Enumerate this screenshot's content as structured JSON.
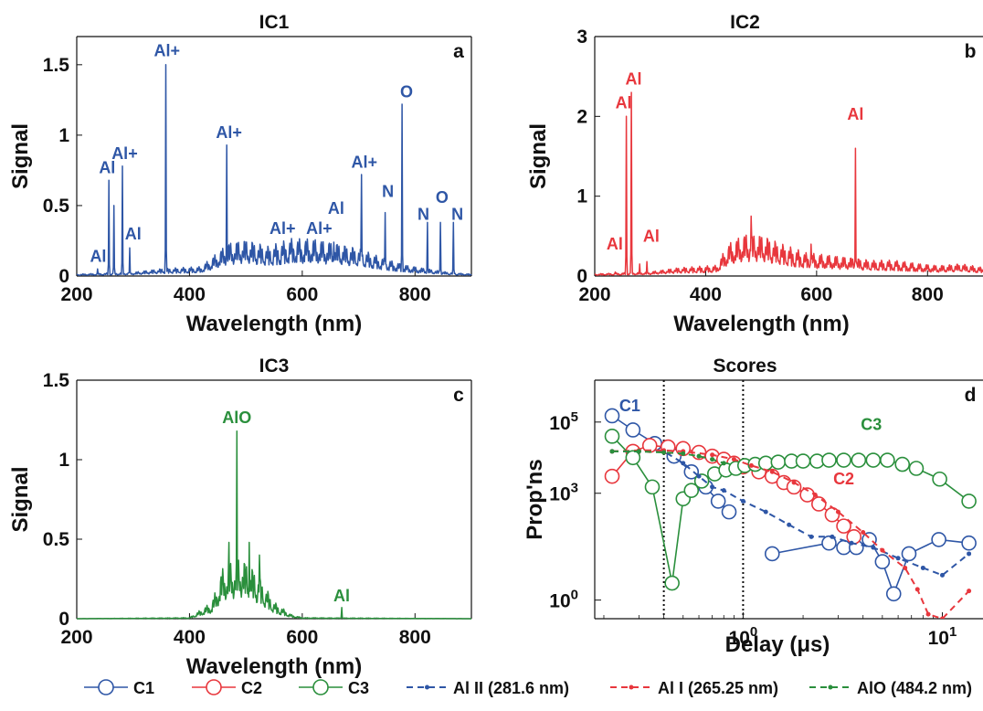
{
  "chart_data": [
    {
      "id": "a",
      "type": "line",
      "title": "IC1",
      "panel_label": "a",
      "xlabel": "Wavelength (nm)",
      "ylabel": "Signal",
      "xlim": [
        200,
        900
      ],
      "ylim": [
        0,
        1.7
      ],
      "xticks": [
        200,
        400,
        600,
        800
      ],
      "yticks": [
        0,
        0.5,
        1,
        1.5
      ],
      "ytick_labels": [
        "0",
        "0.5",
        "1",
        "1.5"
      ],
      "color": "#2e56a6",
      "baseline": [
        [
          200,
          0.01
        ],
        [
          300,
          0.02
        ],
        [
          350,
          0.04
        ],
        [
          420,
          0.05
        ],
        [
          440,
          0.1
        ],
        [
          470,
          0.18
        ],
        [
          500,
          0.2
        ],
        [
          540,
          0.16
        ],
        [
          580,
          0.2
        ],
        [
          620,
          0.2
        ],
        [
          660,
          0.18
        ],
        [
          700,
          0.15
        ],
        [
          740,
          0.1
        ],
        [
          780,
          0.06
        ],
        [
          820,
          0.04
        ],
        [
          860,
          0.02
        ],
        [
          900,
          0.01
        ]
      ],
      "peaks": [
        [
          237,
          0.05
        ],
        [
          257,
          0.68
        ],
        [
          266,
          0.5
        ],
        [
          281,
          0.78
        ],
        [
          294,
          0.2
        ],
        [
          358,
          1.5
        ],
        [
          466,
          0.93
        ],
        [
          558,
          0.12
        ],
        [
          624,
          0.15
        ],
        [
          656,
          0.24
        ],
        [
          705,
          0.72
        ],
        [
          747,
          0.45
        ],
        [
          777,
          1.22
        ],
        [
          822,
          0.38
        ],
        [
          845,
          0.38
        ],
        [
          868,
          0.38
        ]
      ],
      "annotations": [
        {
          "text": "Al",
          "x": 238,
          "y": 0.1
        },
        {
          "text": "Al",
          "x": 254,
          "y": 0.73
        },
        {
          "text": "Al+",
          "x": 285,
          "y": 0.83
        },
        {
          "text": "Al",
          "x": 300,
          "y": 0.26
        },
        {
          "text": "Al+",
          "x": 360,
          "y": 1.56
        },
        {
          "text": "Al+",
          "x": 470,
          "y": 0.98
        },
        {
          "text": "Al+",
          "x": 565,
          "y": 0.3
        },
        {
          "text": "Al+",
          "x": 630,
          "y": 0.3
        },
        {
          "text": "Al",
          "x": 660,
          "y": 0.44
        },
        {
          "text": "Al+",
          "x": 710,
          "y": 0.77
        },
        {
          "text": "N",
          "x": 752,
          "y": 0.56
        },
        {
          "text": "O",
          "x": 785,
          "y": 1.27
        },
        {
          "text": "N",
          "x": 815,
          "y": 0.4
        },
        {
          "text": "O",
          "x": 848,
          "y": 0.52
        },
        {
          "text": "N",
          "x": 875,
          "y": 0.4
        }
      ]
    },
    {
      "id": "b",
      "type": "line",
      "title": "IC2",
      "panel_label": "b",
      "xlabel": "Wavelength (nm)",
      "ylabel": "Signal",
      "xlim": [
        200,
        900
      ],
      "ylim": [
        0,
        3
      ],
      "xticks": [
        200,
        400,
        600,
        800
      ],
      "yticks": [
        0,
        1,
        2,
        3
      ],
      "ytick_labels": [
        "0",
        "1",
        "2",
        "3"
      ],
      "color": "#e8373d",
      "baseline": [
        [
          200,
          0.02
        ],
        [
          300,
          0.04
        ],
        [
          350,
          0.08
        ],
        [
          420,
          0.1
        ],
        [
          440,
          0.3
        ],
        [
          470,
          0.4
        ],
        [
          500,
          0.4
        ],
        [
          540,
          0.3
        ],
        [
          580,
          0.22
        ],
        [
          620,
          0.2
        ],
        [
          660,
          0.18
        ],
        [
          700,
          0.15
        ],
        [
          740,
          0.15
        ],
        [
          780,
          0.12
        ],
        [
          820,
          0.1
        ],
        [
          860,
          0.12
        ],
        [
          900,
          0.08
        ]
      ],
      "peaks": [
        [
          237,
          0.05
        ],
        [
          257,
          2.0
        ],
        [
          266,
          2.3
        ],
        [
          281,
          0.15
        ],
        [
          294,
          0.18
        ],
        [
          482,
          0.75
        ],
        [
          590,
          0.4
        ],
        [
          670,
          1.6
        ]
      ],
      "annotations": [
        {
          "text": "Al",
          "x": 236,
          "y": 0.33
        },
        {
          "text": "Al",
          "x": 252,
          "y": 2.1
        },
        {
          "text": "Al",
          "x": 270,
          "y": 2.4
        },
        {
          "text": "Al",
          "x": 302,
          "y": 0.43
        },
        {
          "text": "Al",
          "x": 670,
          "y": 1.96
        }
      ]
    },
    {
      "id": "c",
      "type": "line",
      "title": "IC3",
      "panel_label": "c",
      "xlabel": "Wavelength (nm)",
      "ylabel": "Signal",
      "xlim": [
        200,
        900
      ],
      "ylim": [
        0,
        1.5
      ],
      "xticks": [
        200,
        400,
        600,
        800
      ],
      "yticks": [
        0,
        0.5,
        1,
        1.5
      ],
      "ytick_labels": [
        "0",
        "0.5",
        "1",
        "1.5"
      ],
      "color": "#2a8f3c",
      "baseline": [
        [
          200,
          0.0
        ],
        [
          400,
          0.005
        ],
        [
          440,
          0.08
        ],
        [
          460,
          0.25
        ],
        [
          490,
          0.3
        ],
        [
          520,
          0.22
        ],
        [
          550,
          0.08
        ],
        [
          580,
          0.02
        ],
        [
          600,
          0.005
        ],
        [
          900,
          0.0
        ]
      ],
      "peaks": [
        [
          470,
          0.48
        ],
        [
          484,
          1.18
        ],
        [
          506,
          0.48
        ],
        [
          524,
          0.4
        ],
        [
          670,
          0.07
        ]
      ],
      "annotations": [
        {
          "text": "AlO",
          "x": 484,
          "y": 1.23
        },
        {
          "text": "Al",
          "x": 670,
          "y": 0.11
        }
      ]
    },
    {
      "id": "d",
      "type": "line",
      "title": "Scores",
      "panel_label": "d",
      "xlabel": "Delay (μs)",
      "ylabel": "Prop'ns",
      "xscale": "log",
      "yscale": "log",
      "xlim": [
        0.18,
        16
      ],
      "ylim": [
        0.3,
        1500000
      ],
      "xticks": [
        1,
        10
      ],
      "yticks": [
        1,
        1000,
        100000
      ],
      "vlines": [
        0.4,
        1.0
      ],
      "series": [
        {
          "name": "C1",
          "color": "#2e56a6",
          "style": "solid",
          "marker": "circle",
          "x": [
            0.22,
            0.28,
            0.36,
            0.45,
            0.55,
            0.65,
            0.75,
            0.85
          ],
          "y": [
            150000,
            60000,
            25000,
            11000,
            4000,
            1500,
            600,
            300
          ]
        },
        {
          "name": "C1",
          "color": "#2e56a6",
          "style": "solid",
          "marker": "circle",
          "x": [
            1.4,
            2.7,
            3.2,
            3.7,
            4.3,
            5.0,
            5.7,
            6.8,
            9.6,
            13.6
          ],
          "y": [
            20,
            40,
            30,
            30,
            50,
            12,
            1.5,
            20,
            50,
            40
          ]
        },
        {
          "name": "C2",
          "color": "#e8373d",
          "style": "solid",
          "marker": "circle",
          "x": [
            0.22,
            0.28,
            0.34,
            0.42,
            0.5,
            0.6,
            0.7,
            0.8,
            0.9,
            1.0,
            1.2,
            1.4,
            1.6,
            1.8,
            2.1,
            2.4,
            2.8,
            3.2,
            3.6
          ],
          "y": [
            3000,
            15000,
            22000,
            20000,
            18000,
            14000,
            11000,
            9000,
            7000,
            5500,
            4000,
            3000,
            2000,
            1500,
            900,
            500,
            250,
            120,
            60
          ]
        },
        {
          "name": "C3",
          "color": "#2a8f3c",
          "style": "solid",
          "marker": "circle",
          "x": [
            0.22,
            0.28,
            0.35,
            0.44,
            0.5,
            0.55,
            0.62,
            0.72,
            0.82,
            0.92,
            1.02,
            1.15,
            1.3,
            1.5,
            1.75,
            2.0,
            2.35,
            2.7,
            3.2,
            3.8,
            4.5,
            5.3,
            6.3,
            7.4,
            9.7,
            13.6
          ],
          "y": [
            40000,
            10000,
            1500,
            3,
            700,
            1200,
            2200,
            3500,
            4500,
            5000,
            6000,
            6500,
            7000,
            7500,
            8000,
            8000,
            8000,
            8500,
            8500,
            8500,
            8500,
            8500,
            6500,
            5000,
            2500,
            600
          ]
        },
        {
          "name": "Al II (281.6 nm)",
          "color": "#2e56a6",
          "style": "dashed",
          "marker": "dot",
          "x": [
            0.22,
            0.3,
            0.4,
            0.5,
            0.6,
            0.7,
            0.8,
            1.0,
            1.3,
            1.7,
            2.2,
            2.8,
            3.5,
            4.5,
            6.0,
            8.0,
            10.0,
            13.6
          ],
          "y": [
            15000,
            15000,
            15000,
            7000,
            3000,
            1500,
            1200,
            600,
            300,
            130,
            60,
            60,
            40,
            30,
            15,
            8,
            5,
            20
          ]
        },
        {
          "name": "Al I (265.25 nm)",
          "color": "#e8373d",
          "style": "dashed",
          "marker": "dot",
          "x": [
            0.22,
            0.3,
            0.4,
            0.5,
            0.7,
            0.9,
            1.1,
            1.4,
            1.8,
            2.3,
            3.0,
            4.0,
            5.0,
            6.5,
            7.5,
            8.5,
            10.0,
            13.6
          ],
          "y": [
            15000,
            16000,
            16000,
            15000,
            12000,
            9000,
            6000,
            4000,
            2000,
            900,
            300,
            80,
            25,
            8,
            2,
            0.4,
            0.3,
            1.8
          ]
        },
        {
          "name": "AlO (484.2 nm)",
          "color": "#2a8f3c",
          "style": "dashed",
          "marker": "dot",
          "x": [
            0.22,
            0.3,
            0.4,
            0.5,
            0.6,
            0.7,
            0.8
          ],
          "y": [
            15000,
            15000,
            14000,
            13000,
            11000,
            9000,
            7000
          ]
        }
      ],
      "annotations": [
        {
          "text": "C1",
          "x": 0.27,
          "y": 200000,
          "color": "#2e56a6"
        },
        {
          "text": "C2",
          "x": 3.2,
          "y": 1800,
          "color": "#e8373d"
        },
        {
          "text": "C3",
          "x": 4.4,
          "y": 60000,
          "color": "#2a8f3c"
        }
      ]
    }
  ],
  "legend": {
    "placement": "bottom",
    "entries": [
      {
        "label": "C1",
        "color": "#2e56a6",
        "style": "solid",
        "marker": "circle"
      },
      {
        "label": "C2",
        "color": "#e8373d",
        "style": "solid",
        "marker": "circle"
      },
      {
        "label": "C3",
        "color": "#2a8f3c",
        "style": "solid",
        "marker": "circle"
      },
      {
        "label": "Al II (281.6 nm)",
        "color": "#2e56a6",
        "style": "dashed",
        "marker": "dot"
      },
      {
        "label": "Al I (265.25 nm)",
        "color": "#e8373d",
        "style": "dashed",
        "marker": "dot"
      },
      {
        "label": "AlO (484.2 nm)",
        "color": "#2a8f3c",
        "style": "dashed",
        "marker": "dot"
      }
    ]
  }
}
